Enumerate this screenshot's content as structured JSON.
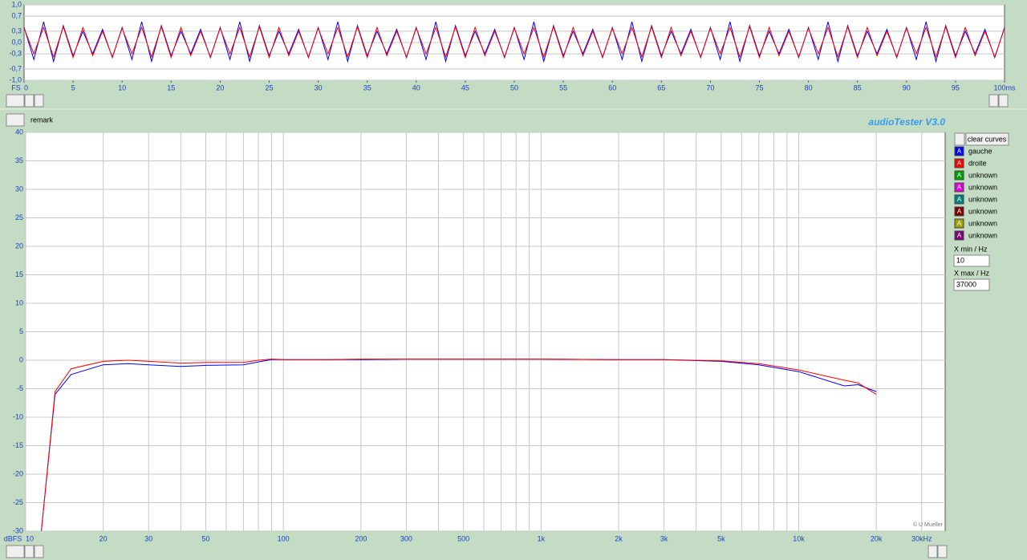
{
  "chart_data": [
    {
      "type": "line",
      "y_unit": "FS",
      "x": [
        0,
        1,
        2,
        3,
        4,
        5,
        6,
        7,
        8,
        9,
        10,
        11,
        12,
        13,
        14,
        15,
        16,
        17,
        18,
        19,
        20,
        21,
        22,
        23,
        24,
        25,
        26,
        27,
        28,
        29,
        30,
        31,
        32,
        33,
        34,
        35,
        36,
        37,
        38,
        39,
        40,
        41,
        42,
        43,
        44,
        45,
        46,
        47,
        48,
        49,
        50,
        51,
        52,
        53,
        54,
        55,
        56,
        57,
        58,
        59,
        60,
        61,
        62,
        63,
        64,
        65,
        66,
        67,
        68,
        69,
        70,
        71,
        72,
        73,
        74,
        75,
        76,
        77,
        78,
        79,
        80,
        81,
        82,
        83,
        84,
        85,
        86,
        87,
        88,
        89,
        90,
        91,
        92,
        93,
        94,
        95,
        96,
        97,
        98,
        99,
        100
      ],
      "series": [
        {
          "color": "#0000ff",
          "values": [
            0.4,
            -0.45,
            0.55,
            -0.5,
            0.45,
            -0.35,
            0.3,
            -0.3,
            0.35,
            -0.4,
            0.4,
            -0.45,
            0.55,
            -0.5,
            0.45,
            -0.35,
            0.3,
            -0.3,
            0.35,
            -0.4,
            0.4,
            -0.45,
            0.55,
            -0.5,
            0.45,
            -0.35,
            0.3,
            -0.3,
            0.35,
            -0.4,
            0.4,
            -0.45,
            0.55,
            -0.5,
            0.45,
            -0.35,
            0.3,
            -0.3,
            0.35,
            -0.4,
            0.4,
            -0.45,
            0.55,
            -0.5,
            0.45,
            -0.35,
            0.3,
            -0.3,
            0.35,
            -0.4,
            0.4,
            -0.45,
            0.55,
            -0.5,
            0.45,
            -0.35,
            0.3,
            -0.3,
            0.35,
            -0.4,
            0.4,
            -0.45,
            0.55,
            -0.5,
            0.45,
            -0.35,
            0.3,
            -0.3,
            0.35,
            -0.4,
            0.4,
            -0.45,
            0.55,
            -0.5,
            0.45,
            -0.35,
            0.3,
            -0.3,
            0.35,
            -0.4,
            0.4,
            -0.45,
            0.55,
            -0.5,
            0.45,
            -0.35,
            0.3,
            -0.3,
            0.35,
            -0.4,
            0.4,
            -0.45,
            0.55,
            -0.5,
            0.45,
            -0.35,
            0.3,
            -0.3,
            0.35,
            -0.4,
            0.4
          ]
        },
        {
          "color": "#ff0000",
          "values": [
            0.38,
            -0.3,
            0.4,
            -0.38,
            0.42,
            -0.4,
            0.4,
            -0.35,
            0.3,
            -0.38,
            0.38,
            -0.3,
            0.4,
            -0.38,
            0.42,
            -0.4,
            0.4,
            -0.35,
            0.3,
            -0.38,
            0.38,
            -0.3,
            0.4,
            -0.38,
            0.42,
            -0.4,
            0.4,
            -0.35,
            0.3,
            -0.38,
            0.38,
            -0.3,
            0.4,
            -0.38,
            0.42,
            -0.4,
            0.4,
            -0.35,
            0.3,
            -0.38,
            0.38,
            -0.3,
            0.4,
            -0.38,
            0.42,
            -0.4,
            0.4,
            -0.35,
            0.3,
            -0.38,
            0.38,
            -0.3,
            0.4,
            -0.38,
            0.42,
            -0.4,
            0.4,
            -0.35,
            0.3,
            -0.38,
            0.38,
            -0.3,
            0.4,
            -0.38,
            0.42,
            -0.4,
            0.4,
            -0.35,
            0.3,
            -0.38,
            0.38,
            -0.3,
            0.4,
            -0.38,
            0.42,
            -0.4,
            0.4,
            -0.35,
            0.3,
            -0.38,
            0.38,
            -0.3,
            0.4,
            -0.38,
            0.42,
            -0.4,
            0.4,
            -0.35,
            0.3,
            -0.38,
            0.38,
            -0.3,
            0.4,
            -0.38,
            0.42,
            -0.4,
            0.4,
            -0.35,
            0.3,
            -0.38,
            0.38
          ]
        }
      ],
      "xlim": [
        0,
        100
      ],
      "xticks": [
        0,
        5,
        10,
        15,
        20,
        25,
        30,
        35,
        40,
        45,
        50,
        55,
        60,
        65,
        70,
        75,
        80,
        85,
        90,
        95,
        {
          "value": 100,
          "label": "100ms"
        }
      ],
      "ylim": [
        -1,
        1
      ],
      "yticks": [
        {
          "value": 1,
          "label": "1,0"
        },
        {
          "value": 0.7,
          "label": "0,7"
        },
        {
          "value": 0.3,
          "label": "0,3"
        },
        {
          "value": 0,
          "label": "0,0"
        },
        {
          "value": -0.3,
          "label": "-0,3"
        },
        {
          "value": -0.7,
          "label": "-0,7"
        },
        {
          "value": -1,
          "label": "-1,0"
        }
      ],
      "grid": true,
      "log_x": false
    },
    {
      "type": "line",
      "y_unit": "dBFS",
      "annotation": "© U Mueller",
      "x": [
        11.5,
        13,
        15,
        20,
        25,
        30,
        40,
        50,
        70,
        80,
        90,
        100,
        150,
        200,
        300,
        500,
        1000,
        2000,
        3000,
        5000,
        7000,
        10000,
        15000,
        17000,
        20000
      ],
      "series": [
        {
          "name": "gauche",
          "color": "#0000ff",
          "values": [
            -30,
            -6,
            -2.5,
            -0.8,
            -0.6,
            -0.8,
            -1.1,
            -0.9,
            -0.8,
            -0.3,
            0.1,
            0.1,
            0.1,
            0.1,
            0.2,
            0.2,
            0.2,
            0.1,
            0.1,
            -0.2,
            -0.8,
            -2,
            -4.5,
            -4.3,
            -5.5
          ]
        },
        {
          "name": "droite",
          "color": "#ff0000",
          "values": [
            -30,
            -5.5,
            -1.5,
            -0.2,
            0,
            -0.2,
            -0.5,
            -0.4,
            -0.4,
            0,
            0.2,
            0.1,
            0.1,
            0.2,
            0.2,
            0.2,
            0.2,
            0.1,
            0.1,
            -0.1,
            -0.6,
            -1.7,
            -3.5,
            -4,
            -6
          ]
        }
      ],
      "xlim": [
        10,
        37000
      ],
      "xticks": [
        10,
        20,
        30,
        50,
        100,
        200,
        300,
        500,
        {
          "value": 1000,
          "label": "1k"
        },
        {
          "value": 2000,
          "label": "2k"
        },
        {
          "value": 3000,
          "label": "3k"
        },
        {
          "value": 5000,
          "label": "5k"
        },
        {
          "value": 10000,
          "label": "10k"
        },
        {
          "value": 20000,
          "label": "20k"
        },
        {
          "value": 30000,
          "label": "30kHz"
        }
      ],
      "xticks_minor": [
        40,
        60,
        70,
        80,
        90,
        400,
        600,
        700,
        800,
        900,
        4000,
        6000,
        7000,
        8000,
        9000
      ],
      "ylim": [
        -30,
        40
      ],
      "yticks": [
        40,
        35,
        30,
        25,
        20,
        15,
        10,
        5,
        0,
        -5,
        -10,
        -15,
        -20,
        -25,
        -30
      ],
      "grid": true,
      "log_x": true
    }
  ],
  "ui": {
    "remark": "remark",
    "app_title": "audioTester  V3.0",
    "clear_button": "clear curves",
    "curve_icon_letter": "A",
    "extra_curves": [
      {
        "label": "unknown",
        "color": "#00a000"
      },
      {
        "label": "unknown",
        "color": "#e000e0"
      },
      {
        "label": "unknown",
        "color": "#008080"
      },
      {
        "label": "unknown",
        "color": "#800000"
      },
      {
        "label": "unknown",
        "color": "#a0a000"
      },
      {
        "label": "unknown",
        "color": "#800080"
      }
    ],
    "xmin_label": "X min / Hz",
    "xmin_value": "10",
    "xmax_label": "X max / Hz",
    "xmax_value": "37000"
  }
}
